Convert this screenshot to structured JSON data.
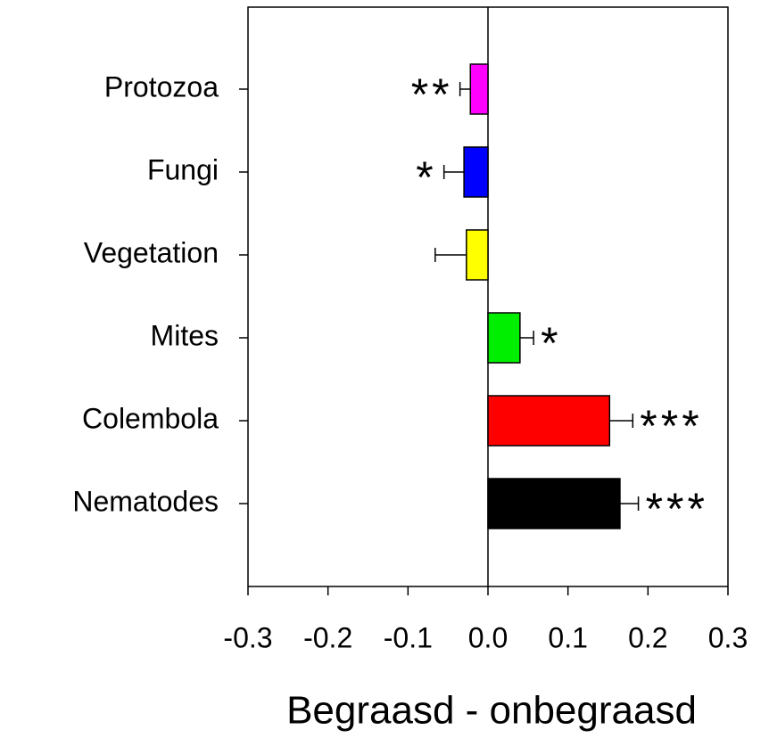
{
  "chart_data": {
    "type": "barh",
    "xlabel": "Begraasd - onbegraasd",
    "categories": [
      "Protozoa",
      "Fungi",
      "Vegetation",
      "Mites",
      "Colembola",
      "Nematodes"
    ],
    "values": [
      -0.022,
      -0.03,
      -0.027,
      0.04,
      0.152,
      0.165
    ],
    "errors": [
      0.013,
      0.025,
      0.039,
      0.017,
      0.029,
      0.023
    ],
    "colors": [
      "#ff00ff",
      "#0000ff",
      "#ffff00",
      "#00ee00",
      "#ff0000",
      "#000000"
    ],
    "annotations": [
      "**",
      "*",
      null,
      "*",
      "***",
      "***"
    ],
    "xlim": [
      -0.3,
      0.3
    ],
    "xticks": [
      -0.3,
      -0.2,
      -0.1,
      {
        "value": 0,
        "label": "0.0"
      },
      0.1,
      0.2,
      0.3
    ]
  }
}
